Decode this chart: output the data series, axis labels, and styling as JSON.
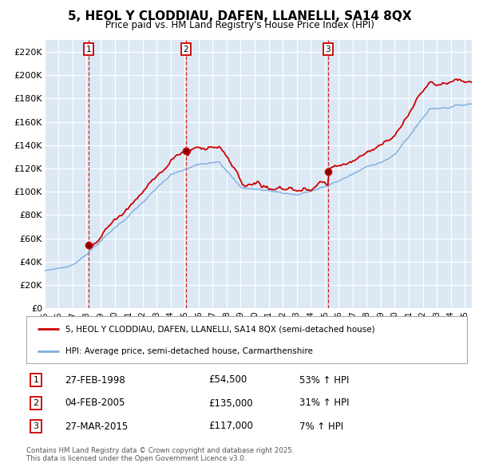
{
  "title": "5, HEOL Y CLODDIAU, DAFEN, LLANELLI, SA14 8QX",
  "subtitle": "Price paid vs. HM Land Registry's House Price Index (HPI)",
  "ylim": [
    0,
    230000
  ],
  "yticks": [
    0,
    20000,
    40000,
    60000,
    80000,
    100000,
    120000,
    140000,
    160000,
    180000,
    200000,
    220000
  ],
  "ytick_labels": [
    "£0",
    "£20K",
    "£40K",
    "£60K",
    "£80K",
    "£100K",
    "£120K",
    "£140K",
    "£160K",
    "£180K",
    "£200K",
    "£220K"
  ],
  "background_color": "#ffffff",
  "plot_bg_color": "#dce9f5",
  "grid_color": "#ffffff",
  "purchase_years": [
    1998.15,
    2005.09,
    2015.23
  ],
  "purchase_prices": [
    54500,
    135000,
    117000
  ],
  "purchase_labels": [
    "1",
    "2",
    "3"
  ],
  "legend_entries": [
    {
      "label": "5, HEOL Y CLODDIAU, DAFEN, LLANELLI, SA14 8QX (semi-detached house)",
      "color": "#cc0000"
    },
    {
      "label": "HPI: Average price, semi-detached house, Carmarthenshire",
      "color": "#6699cc"
    }
  ],
  "table_rows": [
    {
      "num": "1",
      "date": "27-FEB-1998",
      "price": "£54,500",
      "hpi": "53% ↑ HPI"
    },
    {
      "num": "2",
      "date": "04-FEB-2005",
      "price": "£135,000",
      "hpi": "31% ↑ HPI"
    },
    {
      "num": "3",
      "date": "27-MAR-2015",
      "price": "£117,000",
      "hpi": "7% ↑ HPI"
    }
  ],
  "footnote": "Contains HM Land Registry data © Crown copyright and database right 2025.\nThis data is licensed under the Open Government Licence v3.0.",
  "xmin": 1995.0,
  "xmax": 2025.5
}
